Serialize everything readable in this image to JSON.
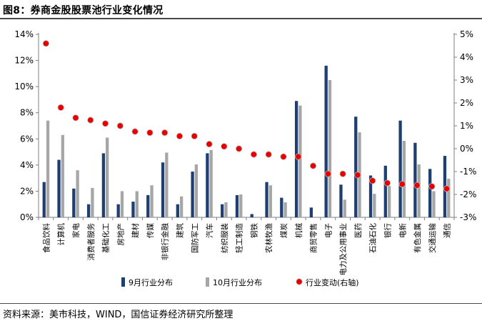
{
  "figure_title": "图8：券商金股股票池行业变化情况",
  "source_note": "资料来源：美市科技，WIND，国信证券经济研究所整理",
  "colors": {
    "sep": "#1f3f73",
    "oct": "#a6a6a6",
    "change": "#e60000",
    "axis": "#7f7f7f"
  },
  "chart_data": {
    "type": "bar",
    "title": "券商金股股票池行业变化情况",
    "xlabel": "",
    "ylabel": "",
    "ylim": [
      0,
      14
    ],
    "y_ticks": [
      "0%",
      "2%",
      "4%",
      "6%",
      "8%",
      "10%",
      "12%",
      "14%"
    ],
    "y2lim": [
      -3,
      5
    ],
    "y2_ticks": [
      "-3%",
      "-2%",
      "-1%",
      "0%",
      "1%",
      "2%",
      "3%",
      "4%",
      "5%"
    ],
    "legend_position": "bottom",
    "categories": [
      "食品饮料",
      "计算机",
      "家电",
      "消费者服务",
      "基础化工",
      "房地产",
      "建材",
      "传媒",
      "非银行金融",
      "建筑",
      "国防军工",
      "汽车",
      "纺织服装",
      "轻工制造",
      "钢铁",
      "农林牧渔",
      "煤炭",
      "机械",
      "商贸零售",
      "电子",
      "电力及公用事业",
      "医药",
      "石油石化",
      "银行",
      "电新",
      "有色金属",
      "交通运输",
      "通信"
    ],
    "series": [
      {
        "name": "9月行业分布",
        "type": "bar",
        "axis": "left",
        "values": [
          2.7,
          4.4,
          2.2,
          1.0,
          4.9,
          1.0,
          1.2,
          1.7,
          4.2,
          1.0,
          3.5,
          4.9,
          1.0,
          1.7,
          0.25,
          2.7,
          1.5,
          8.9,
          0.75,
          11.6,
          2.5,
          7.7,
          3.2,
          3.95,
          7.4,
          5.7,
          3.7,
          4.7
        ]
      },
      {
        "name": "10月行业分布",
        "type": "bar",
        "axis": "left",
        "values": [
          7.4,
          6.3,
          3.6,
          2.25,
          6.1,
          2.0,
          2.0,
          2.45,
          4.95,
          1.6,
          4.05,
          5.15,
          1.15,
          1.75,
          0.0,
          2.45,
          1.15,
          8.55,
          0.0,
          10.5,
          1.35,
          6.5,
          1.8,
          2.4,
          5.85,
          4.05,
          2.0,
          2.95
        ]
      },
      {
        "name": "行业变动(右轴)",
        "type": "scatter",
        "axis": "right",
        "values": [
          4.6,
          1.8,
          1.35,
          1.25,
          1.1,
          1.0,
          0.75,
          0.7,
          0.7,
          0.55,
          0.55,
          0.2,
          0.1,
          0.0,
          -0.25,
          -0.25,
          -0.35,
          -0.35,
          -0.75,
          -1.1,
          -1.1,
          -1.15,
          -1.4,
          -1.5,
          -1.55,
          -1.6,
          -1.65,
          -1.75
        ]
      }
    ]
  }
}
